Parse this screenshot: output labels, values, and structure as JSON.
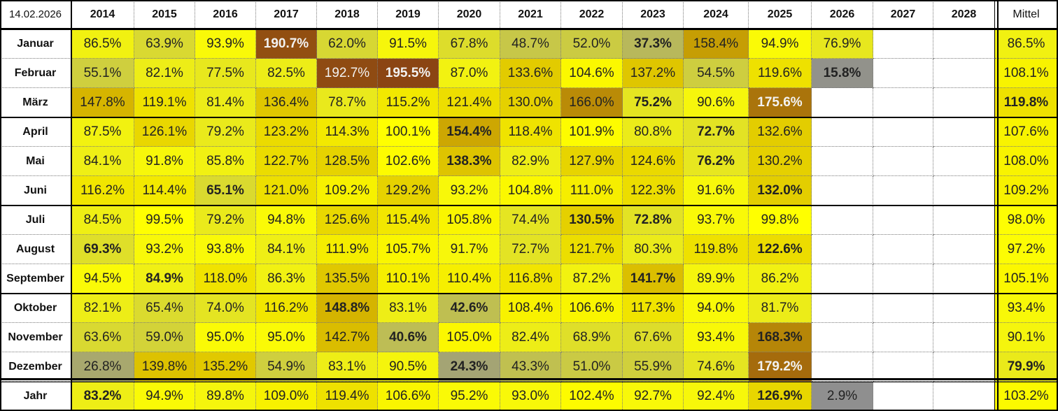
{
  "chart_data": {
    "type": "heatmap",
    "date_label": "14.02.2026",
    "columns": [
      "2014",
      "2015",
      "2016",
      "2017",
      "2018",
      "2019",
      "2020",
      "2021",
      "2022",
      "2023",
      "2024",
      "2025",
      "2026",
      "2027",
      "2028"
    ],
    "mean_label": "Mittel",
    "rows": [
      {
        "label": "Januar",
        "values": [
          "86.5%",
          "63.9%",
          "93.9%",
          "190.7%",
          "62.0%",
          "91.5%",
          "67.8%",
          "48.7%",
          "52.0%",
          "37.3%",
          "158.4%",
          "94.9%",
          "76.9%",
          "",
          ""
        ],
        "bold": [
          3,
          9
        ],
        "mean": "86.5%",
        "mean_bold": false
      },
      {
        "label": "Februar",
        "values": [
          "55.1%",
          "82.1%",
          "77.5%",
          "82.5%",
          "192.7%",
          "195.5%",
          "87.0%",
          "133.6%",
          "104.6%",
          "137.2%",
          "54.5%",
          "119.6%",
          "15.8%",
          "",
          ""
        ],
        "bold": [
          5,
          12
        ],
        "mean": "108.1%",
        "mean_bold": false
      },
      {
        "label": "März",
        "values": [
          "147.8%",
          "119.1%",
          "81.4%",
          "136.4%",
          "78.7%",
          "115.2%",
          "121.4%",
          "130.0%",
          "166.0%",
          "75.2%",
          "90.6%",
          "175.6%",
          "",
          "",
          ""
        ],
        "bold": [
          9,
          11
        ],
        "mean": "119.8%",
        "mean_bold": true
      },
      {
        "label": "April",
        "values": [
          "87.5%",
          "126.1%",
          "79.2%",
          "123.2%",
          "114.3%",
          "100.1%",
          "154.4%",
          "118.4%",
          "101.9%",
          "80.8%",
          "72.7%",
          "132.6%",
          "",
          "",
          ""
        ],
        "bold": [
          6,
          10
        ],
        "mean": "107.6%",
        "mean_bold": false
      },
      {
        "label": "Mai",
        "values": [
          "84.1%",
          "91.8%",
          "85.8%",
          "122.7%",
          "128.5%",
          "102.6%",
          "138.3%",
          "82.9%",
          "127.9%",
          "124.6%",
          "76.2%",
          "130.2%",
          "",
          "",
          ""
        ],
        "bold": [
          6,
          10
        ],
        "mean": "108.0%",
        "mean_bold": false
      },
      {
        "label": "Juni",
        "values": [
          "116.2%",
          "114.4%",
          "65.1%",
          "121.0%",
          "109.2%",
          "129.2%",
          "93.2%",
          "104.8%",
          "111.0%",
          "122.3%",
          "91.6%",
          "132.0%",
          "",
          "",
          ""
        ],
        "bold": [
          2,
          11
        ],
        "mean": "109.2%",
        "mean_bold": false
      },
      {
        "label": "Juli",
        "values": [
          "84.5%",
          "99.5%",
          "79.2%",
          "94.8%",
          "125.6%",
          "115.4%",
          "105.8%",
          "74.4%",
          "130.5%",
          "72.8%",
          "93.7%",
          "99.8%",
          "",
          "",
          ""
        ],
        "bold": [
          8,
          9
        ],
        "mean": "98.0%",
        "mean_bold": false
      },
      {
        "label": "August",
        "values": [
          "69.3%",
          "93.2%",
          "93.8%",
          "84.1%",
          "111.9%",
          "105.7%",
          "91.7%",
          "72.7%",
          "121.7%",
          "80.3%",
          "119.8%",
          "122.6%",
          "",
          "",
          ""
        ],
        "bold": [
          0,
          11
        ],
        "mean": "97.2%",
        "mean_bold": false
      },
      {
        "label": "September",
        "values": [
          "94.5%",
          "84.9%",
          "118.0%",
          "86.3%",
          "135.5%",
          "110.1%",
          "110.4%",
          "116.8%",
          "87.2%",
          "141.7%",
          "89.9%",
          "86.2%",
          "",
          "",
          ""
        ],
        "bold": [
          1,
          9
        ],
        "mean": "105.1%",
        "mean_bold": false
      },
      {
        "label": "Oktober",
        "values": [
          "82.1%",
          "65.4%",
          "74.0%",
          "116.2%",
          "148.8%",
          "83.1%",
          "42.6%",
          "108.4%",
          "106.6%",
          "117.3%",
          "94.0%",
          "81.7%",
          "",
          "",
          ""
        ],
        "bold": [
          4,
          6
        ],
        "mean": "93.4%",
        "mean_bold": false
      },
      {
        "label": "November",
        "values": [
          "63.6%",
          "59.0%",
          "95.0%",
          "95.0%",
          "142.7%",
          "40.6%",
          "105.0%",
          "82.4%",
          "68.9%",
          "67.6%",
          "93.4%",
          "168.3%",
          "",
          "",
          ""
        ],
        "bold": [
          5,
          11
        ],
        "mean": "90.1%",
        "mean_bold": false
      },
      {
        "label": "Dezember",
        "values": [
          "26.8%",
          "139.8%",
          "135.2%",
          "54.9%",
          "83.1%",
          "90.5%",
          "24.3%",
          "43.3%",
          "51.0%",
          "55.9%",
          "74.6%",
          "179.2%",
          "",
          "",
          ""
        ],
        "bold": [
          6,
          11
        ],
        "mean": "79.9%",
        "mean_bold": true
      }
    ],
    "year_row": {
      "label": "Jahr",
      "values": [
        "83.2%",
        "94.9%",
        "89.8%",
        "109.0%",
        "119.4%",
        "106.6%",
        "95.2%",
        "93.0%",
        "102.4%",
        "92.7%",
        "92.4%",
        "126.9%",
        "2.9%",
        "",
        ""
      ],
      "bold": [
        0,
        11
      ],
      "mean": "103.2%",
      "mean_bold": false
    },
    "colors": {
      "scale_min": "#8f8f8f",
      "scale_mid": "#ffff00",
      "scale_high": "#d4b200",
      "scale_max": "#8b4513",
      "empty": "#ffffff"
    }
  }
}
